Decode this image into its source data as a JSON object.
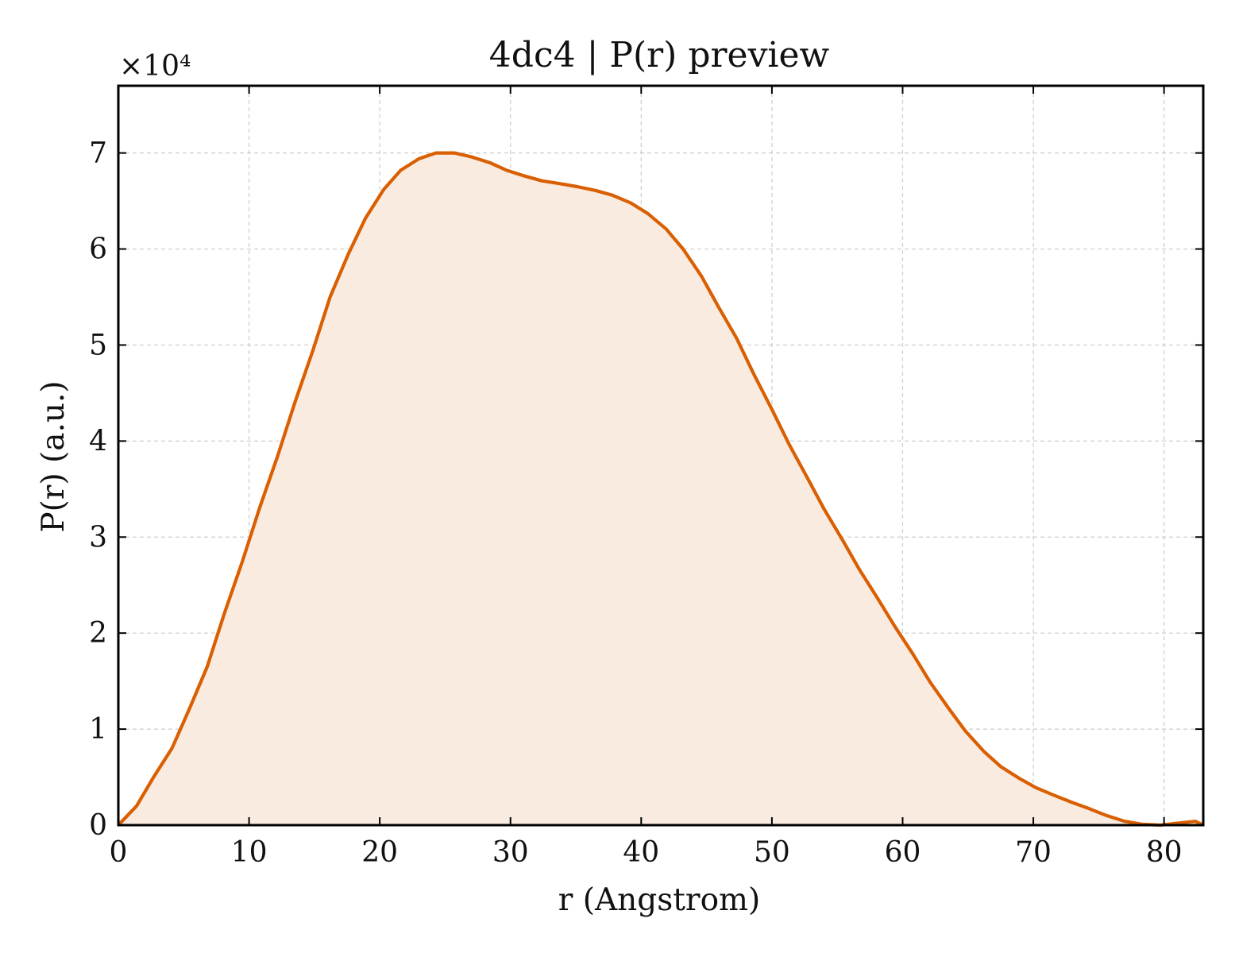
{
  "chart_data": {
    "type": "area",
    "title": "4dc4 | P(r) preview",
    "xlabel": "r (Angstrom)",
    "ylabel": "P(r) (a.u.)",
    "y_scale_label": "×10⁴",
    "y_scale_factor": 10000,
    "xlim": [
      0,
      83
    ],
    "ylim": [
      0,
      77000
    ],
    "xticks": [
      0,
      10,
      20,
      30,
      40,
      50,
      60,
      70,
      80
    ],
    "yticks": [
      0,
      10000,
      20000,
      30000,
      40000,
      50000,
      60000,
      70000
    ],
    "ytick_labels": [
      "0",
      "1",
      "2",
      "3",
      "4",
      "5",
      "6",
      "7"
    ],
    "grid": true,
    "line_color": "#d95f02",
    "fill_color": "#f9ebe0",
    "series": [
      {
        "x": [
          0,
          1.4,
          2.7,
          4.1,
          5.4,
          6.8,
          8.1,
          9.5,
          10.8,
          12.2,
          13.5,
          14.9,
          16.2,
          17.6,
          18.9,
          20.3,
          21.6,
          23.0,
          24.3,
          25.7,
          27.0,
          28.4,
          29.7,
          31.1,
          32.4,
          33.8,
          35.1,
          36.5,
          37.8,
          39.2,
          40.5,
          41.9,
          43.2,
          44.6,
          45.9,
          47.3,
          48.6,
          50.0,
          51.3,
          52.7,
          54.0,
          55.4,
          56.7,
          58.1,
          59.4,
          60.8,
          62.1,
          63.5,
          64.8,
          66.2,
          67.5,
          68.9,
          70.2,
          71.6,
          72.9,
          74.3,
          75.6,
          77.0,
          78.3,
          79.7,
          81.0,
          82.4,
          83.0
        ],
        "y": [
          0,
          2000,
          5000,
          8000,
          12000,
          16500,
          22000,
          27500,
          33000,
          38500,
          44000,
          49500,
          55000,
          59500,
          63200,
          66200,
          68200,
          69400,
          70000,
          70000,
          69600,
          69000,
          68200,
          67600,
          67100,
          66800,
          66500,
          66100,
          65600,
          64800,
          63700,
          62100,
          60000,
          57200,
          54000,
          50700,
          47000,
          43300,
          39700,
          36200,
          32900,
          29700,
          26600,
          23600,
          20700,
          17800,
          14900,
          12200,
          9800,
          7700,
          6100,
          4900,
          3900,
          3100,
          2400,
          1700,
          1000,
          400,
          100,
          0,
          200,
          400,
          0
        ]
      }
    ]
  }
}
